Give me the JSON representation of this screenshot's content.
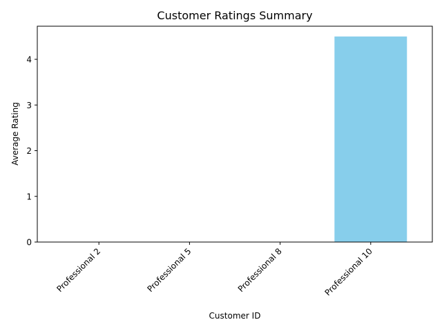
{
  "chart_data": {
    "type": "bar",
    "title": "Customer Ratings Summary",
    "xlabel": "Customer ID",
    "ylabel": "Average Rating",
    "categories": [
      "Professional 2",
      "Professional 5",
      "Professional 8",
      "Professional 10"
    ],
    "values": [
      0,
      0,
      0,
      4.5
    ],
    "ylim": [
      0,
      4.725
    ],
    "yticks": [
      0,
      1,
      2,
      3,
      4
    ],
    "grid": false,
    "bar_color": "#87CEEB"
  }
}
